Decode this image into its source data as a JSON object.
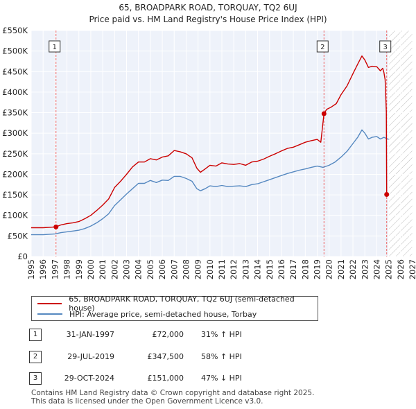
{
  "chart_data": {
    "type": "line",
    "title": "65, BROADPARK ROAD, TORQUAY, TQ2 6UJ",
    "subtitle": "Price paid vs. HM Land Registry's House Price Index (HPI)",
    "xlabel": "",
    "ylabel": "",
    "xlim": [
      1995,
      2027
    ],
    "ylim": [
      0,
      550000
    ],
    "x_ticks": [
      1995,
      1996,
      1997,
      1998,
      1999,
      2000,
      2001,
      2002,
      2003,
      2004,
      2005,
      2006,
      2007,
      2008,
      2009,
      2010,
      2011,
      2012,
      2013,
      2014,
      2015,
      2016,
      2017,
      2018,
      2019,
      2020,
      2021,
      2022,
      2023,
      2024,
      2025,
      2026,
      2027
    ],
    "y_ticks": [
      0,
      50000,
      100000,
      150000,
      200000,
      250000,
      300000,
      350000,
      400000,
      450000,
      500000,
      550000
    ],
    "y_tick_labels": [
      "£0",
      "£50K",
      "£100K",
      "£150K",
      "£200K",
      "£250K",
      "£300K",
      "£350K",
      "£400K",
      "£450K",
      "£500K",
      "£550K"
    ],
    "grid": true,
    "forecast_hatch_start": 2025.0,
    "series": [
      {
        "name": "65, BROADPARK ROAD, TORQUAY, TQ2 6UJ (semi-detached house)",
        "color": "#cc0000",
        "x": [
          1995.0,
          1996.0,
          1997.08,
          1997.5,
          1998.0,
          1998.5,
          1999.0,
          1999.5,
          2000.0,
          2000.5,
          2001.0,
          2001.5,
          2002.0,
          2002.5,
          2003.0,
          2003.5,
          2004.0,
          2004.5,
          2005.0,
          2005.5,
          2006.0,
          2006.5,
          2007.0,
          2007.5,
          2008.0,
          2008.5,
          2008.9,
          2009.2,
          2009.6,
          2010.0,
          2010.5,
          2011.0,
          2011.5,
          2012.0,
          2012.5,
          2013.0,
          2013.5,
          2014.0,
          2014.5,
          2015.0,
          2015.5,
          2016.0,
          2016.5,
          2017.0,
          2017.5,
          2018.0,
          2018.5,
          2019.0,
          2019.3,
          2019.57,
          2019.8,
          2020.2,
          2020.6,
          2021.0,
          2021.5,
          2022.0,
          2022.4,
          2022.75,
          2023.0,
          2023.3,
          2023.6,
          2024.0,
          2024.3,
          2024.5,
          2024.6,
          2024.7,
          2024.8,
          2024.83,
          2025.0
        ],
        "values": [
          70000,
          70000,
          72000,
          77000,
          80000,
          82000,
          85000,
          92000,
          100000,
          112000,
          125000,
          140000,
          168000,
          183000,
          200000,
          218000,
          230000,
          230000,
          238000,
          235000,
          242000,
          245000,
          258000,
          255000,
          250000,
          240000,
          215000,
          205000,
          213000,
          222000,
          220000,
          228000,
          225000,
          224000,
          226000,
          222000,
          230000,
          232000,
          237000,
          244000,
          250000,
          257000,
          263000,
          266000,
          272000,
          278000,
          282000,
          285000,
          278000,
          347500,
          358000,
          364000,
          372000,
          394000,
          415000,
          445000,
          468000,
          488000,
          478000,
          460000,
          463000,
          462000,
          452000,
          458000,
          448000,
          430000,
          352000,
          151000,
          151000
        ]
      },
      {
        "name": "HPI: Average price, semi-detached house, Torbay",
        "color": "#5588c0",
        "x": [
          1995.0,
          1996.0,
          1997.0,
          1997.5,
          1998.0,
          1998.5,
          1999.0,
          1999.5,
          2000.0,
          2000.5,
          2001.0,
          2001.5,
          2002.0,
          2002.5,
          2003.0,
          2003.5,
          2004.0,
          2004.5,
          2005.0,
          2005.5,
          2006.0,
          2006.5,
          2007.0,
          2007.5,
          2008.0,
          2008.5,
          2008.9,
          2009.2,
          2009.6,
          2010.0,
          2010.5,
          2011.0,
          2011.5,
          2012.0,
          2012.5,
          2013.0,
          2013.5,
          2014.0,
          2014.5,
          2015.0,
          2015.5,
          2016.0,
          2016.5,
          2017.0,
          2017.5,
          2018.0,
          2018.5,
          2019.0,
          2019.5,
          2020.0,
          2020.5,
          2021.0,
          2021.5,
          2022.0,
          2022.4,
          2022.75,
          2023.0,
          2023.3,
          2023.6,
          2024.0,
          2024.3,
          2024.6,
          2024.83,
          2025.0
        ],
        "values": [
          53000,
          53000,
          55000,
          58000,
          60000,
          62000,
          64000,
          68000,
          74000,
          82000,
          92000,
          104000,
          124000,
          138000,
          152000,
          165000,
          178000,
          178000,
          185000,
          180000,
          186000,
          185000,
          195000,
          195000,
          190000,
          183000,
          165000,
          160000,
          165000,
          172000,
          170000,
          173000,
          170000,
          171000,
          172000,
          170000,
          175000,
          177000,
          182000,
          187000,
          192000,
          197000,
          202000,
          206000,
          210000,
          213000,
          217000,
          220000,
          217000,
          222000,
          230000,
          242000,
          256000,
          275000,
          290000,
          308000,
          300000,
          286000,
          290000,
          292000,
          286000,
          290000,
          287000,
          285000
        ]
      }
    ],
    "sales": [
      {
        "label": "1",
        "x": 1997.08,
        "y": 72000
      },
      {
        "label": "2",
        "x": 2019.57,
        "y": 347500
      },
      {
        "label": "3",
        "x": 2024.83,
        "y": 151000
      }
    ]
  },
  "legend": {
    "property_label": "65, BROADPARK ROAD, TORQUAY, TQ2 6UJ (semi-detached house)",
    "hpi_label": "HPI: Average price, semi-detached house, Torbay"
  },
  "transactions": [
    {
      "num": "1",
      "date": "31-JAN-1997",
      "price": "£72,000",
      "hpi": "31% ↑ HPI"
    },
    {
      "num": "2",
      "date": "29-JUL-2019",
      "price": "£347,500",
      "hpi": "58% ↑ HPI"
    },
    {
      "num": "3",
      "date": "29-OCT-2024",
      "price": "£151,000",
      "hpi": "47% ↓ HPI"
    }
  ],
  "footer": {
    "line1": "Contains HM Land Registry data © Crown copyright and database right 2025.",
    "line2": "This data is licensed under the Open Government Licence v3.0."
  },
  "colors": {
    "property": "#cc0000",
    "hpi": "#5588c0",
    "plot_bg": "#eef2fa",
    "marker_line": "#ee6666"
  }
}
